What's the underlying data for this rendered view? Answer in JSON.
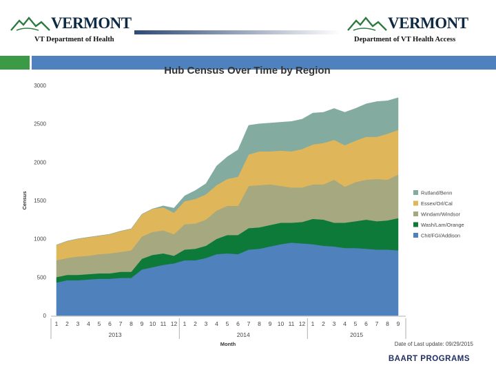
{
  "header": {
    "left_logo_text": "VERMONT",
    "left_dept": "VT Department of Health",
    "right_logo_text": "VERMONT",
    "right_dept": "Department of VT Health Access"
  },
  "footer": {
    "program_label": "BAART PROGRAMS"
  },
  "colors": {
    "blue_bar": "#4e81bd",
    "green_square": "#3a9a46"
  },
  "chart_data": {
    "type": "area",
    "stacked": true,
    "title": "Hub Census Over Time by Region",
    "xlabel": "Month",
    "ylabel": "Census",
    "ylim": [
      0,
      3000
    ],
    "yticks": [
      0,
      500,
      1000,
      1500,
      2000,
      2500,
      3000
    ],
    "categories": [
      "1",
      "2",
      "3",
      "4",
      "5",
      "6",
      "7",
      "8",
      "9",
      "10",
      "11",
      "12",
      "1",
      "2",
      "3",
      "4",
      "5",
      "6",
      "7",
      "8",
      "9",
      "10",
      "11",
      "12",
      "1",
      "2",
      "3",
      "4",
      "5",
      "6",
      "7",
      "8",
      "9"
    ],
    "year_groups": [
      {
        "label": "2013",
        "count": 12
      },
      {
        "label": "2014",
        "count": 12
      },
      {
        "label": "2015",
        "count": 9
      }
    ],
    "footnote": "Date of Last update: 09/29/2015",
    "legend_position": "right",
    "series": [
      {
        "name": "Chit/FGI/Addison",
        "color": "#4f81bd",
        "values": [
          430,
          460,
          460,
          470,
          480,
          480,
          490,
          490,
          600,
          630,
          660,
          680,
          720,
          720,
          750,
          800,
          810,
          800,
          860,
          870,
          900,
          930,
          950,
          940,
          930,
          910,
          900,
          880,
          880,
          870,
          860,
          860,
          850
        ]
      },
      {
        "name": "Wash/Lam/Orange",
        "color": "#0d7a3a",
        "values": [
          70,
          70,
          70,
          70,
          70,
          70,
          80,
          80,
          140,
          160,
          150,
          100,
          140,
          150,
          160,
          200,
          240,
          250,
          280,
          280,
          280,
          280,
          260,
          280,
          330,
          340,
          310,
          330,
          350,
          380,
          370,
          380,
          420
        ]
      },
      {
        "name": "Windam/Windsor",
        "color": "#a6a87f",
        "values": [
          220,
          220,
          240,
          240,
          250,
          260,
          260,
          280,
          290,
          300,
          300,
          280,
          330,
          330,
          340,
          370,
          380,
          380,
          550,
          550,
          530,
          480,
          460,
          450,
          450,
          460,
          560,
          470,
          510,
          520,
          550,
          530,
          570
        ]
      },
      {
        "name": "Essex/Orl/Cal",
        "color": "#e0b65b",
        "values": [
          200,
          220,
          230,
          240,
          240,
          250,
          270,
          280,
          290,
          300,
          300,
          280,
          300,
          320,
          330,
          330,
          350,
          380,
          410,
          440,
          430,
          460,
          470,
          500,
          520,
          540,
          520,
          540,
          540,
          560,
          550,
          600,
          580
        ]
      },
      {
        "name": "Rutland/Benn",
        "color": "#84ab9f",
        "values": [
          0,
          0,
          0,
          0,
          0,
          0,
          0,
          0,
          0,
          0,
          20,
          60,
          70,
          110,
          140,
          250,
          290,
          350,
          380,
          360,
          370,
          370,
          390,
          390,
          410,
          400,
          410,
          430,
          420,
          430,
          460,
          430,
          420
        ]
      }
    ]
  }
}
